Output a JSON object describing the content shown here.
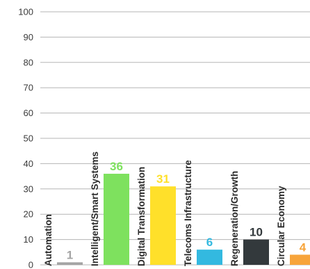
{
  "chart_data": {
    "type": "bar",
    "title": "",
    "xlabel": "",
    "ylabel": "",
    "ylim": [
      0,
      100
    ],
    "yticks": [
      0,
      10,
      20,
      30,
      40,
      50,
      60,
      70,
      80,
      90,
      100
    ],
    "grid": true,
    "categories": [
      "Automation",
      "Intelligent/Smart Systems",
      "Digital Transformation",
      "Telecoms Infrastructure",
      "Regeneration/Growth",
      "Circular Economy"
    ],
    "values": [
      1,
      36,
      31,
      6,
      10,
      4
    ],
    "colors": [
      "#a4a4a4",
      "#7ee15e",
      "#ffe02a",
      "#33b9e0",
      "#33393c",
      "#f7a43a"
    ]
  }
}
